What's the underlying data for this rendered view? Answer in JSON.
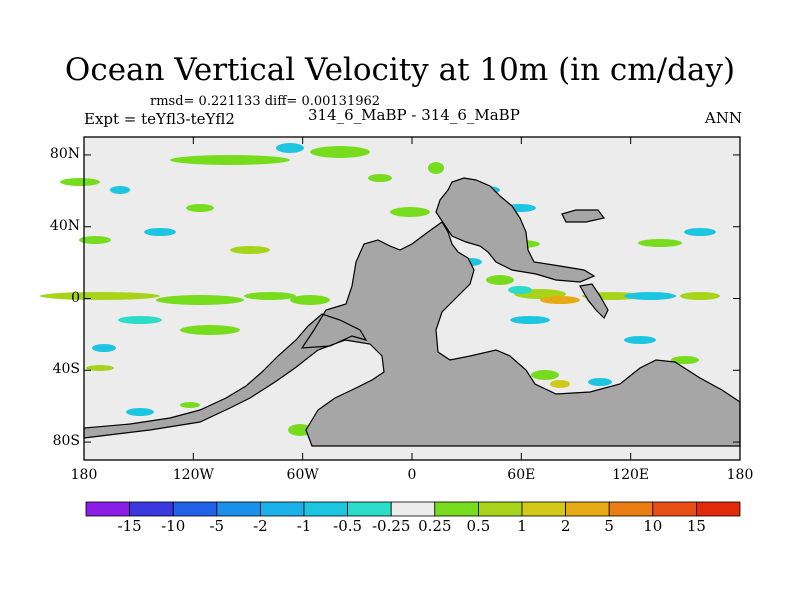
{
  "chart_data": {
    "type": "heatmap",
    "title": "Ocean Vertical Velocity at 10m (in cm/day)",
    "stats": "rmsd= 0.221133 diff= 0.00131962",
    "experiment": "Expt = teYfl3-teYfl2",
    "period": "314_6_MaBP - 314_6_MaBP",
    "season": "ANN",
    "x_ticks": [
      "180",
      "120W",
      "60W",
      "0",
      "60E",
      "120E",
      "180"
    ],
    "y_ticks": [
      "80N",
      "40N",
      "0",
      "40S",
      "80S"
    ],
    "xlim": [
      -180,
      180
    ],
    "ylim": [
      -90,
      90
    ],
    "colorbar": {
      "labels": [
        "-15",
        "-10",
        "-5",
        "-2",
        "-1",
        "-0.5",
        "-0.25",
        "0.25",
        "0.5",
        "1",
        "2",
        "5",
        "10",
        "15"
      ],
      "colors": [
        "#8a1ee6",
        "#3a37de",
        "#2061e8",
        "#1a8fec",
        "#1ab0e8",
        "#1dc6e0",
        "#2bdcc8",
        "#ececec",
        "#78dc1e",
        "#a6d41a",
        "#d2c818",
        "#e6aa14",
        "#eb7d12",
        "#e84f12",
        "#e22a0a"
      ]
    },
    "land_color": "#a6a6a6",
    "ocean_color": "#ececec"
  }
}
